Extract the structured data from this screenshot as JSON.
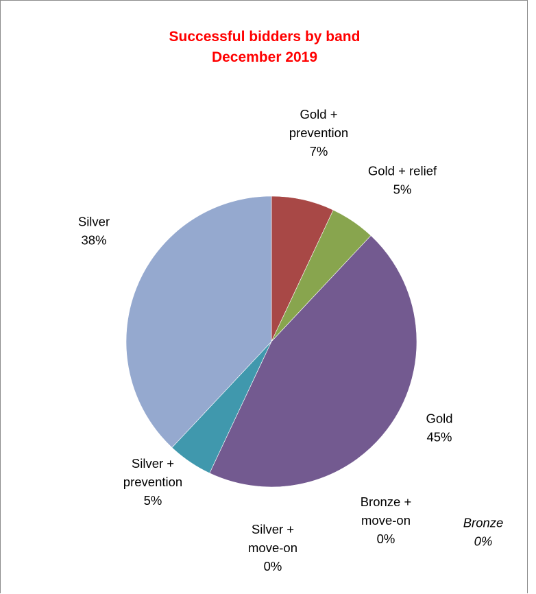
{
  "chart_data": {
    "type": "pie",
    "title": "Successful bidders by band",
    "subtitle": "December 2019",
    "slices": [
      {
        "name": "Gold + prevention",
        "value": 7,
        "label_lines": [
          "Gold +",
          "prevention"
        ],
        "pct": "7%",
        "color": "#a84846",
        "italic": false
      },
      {
        "name": "Gold + relief",
        "value": 5,
        "label_lines": [
          "Gold + relief"
        ],
        "pct": "5%",
        "color": "#88a54e",
        "italic": false
      },
      {
        "name": "Gold",
        "value": 45,
        "label_lines": [
          "Gold"
        ],
        "pct": "45%",
        "color": "#735a90",
        "italic": false
      },
      {
        "name": "Bronze + move-on",
        "value": 0,
        "label_lines": [
          "Bronze +",
          "move-on"
        ],
        "pct": "0%",
        "color": "#f29b4a",
        "italic": false
      },
      {
        "name": "Bronze",
        "value": 0,
        "label_lines": [
          "Bronze"
        ],
        "pct": "0%",
        "color": "#b0b0b0",
        "italic": true
      },
      {
        "name": "Silver + move-on",
        "value": 0,
        "label_lines": [
          "Silver +",
          "move-on"
        ],
        "pct": "0%",
        "color": "#4a7ebb",
        "italic": false
      },
      {
        "name": "Silver + prevention",
        "value": 5,
        "label_lines": [
          "Silver +",
          "prevention"
        ],
        "pct": "5%",
        "color": "#4098ad",
        "italic": false
      },
      {
        "name": "Silver",
        "value": 38,
        "label_lines": [
          "Silver"
        ],
        "pct": "38%",
        "color": "#95a9cf",
        "italic": false
      }
    ],
    "legend": "none",
    "start_angle": "12 o'clock",
    "direction": "clockwise"
  }
}
